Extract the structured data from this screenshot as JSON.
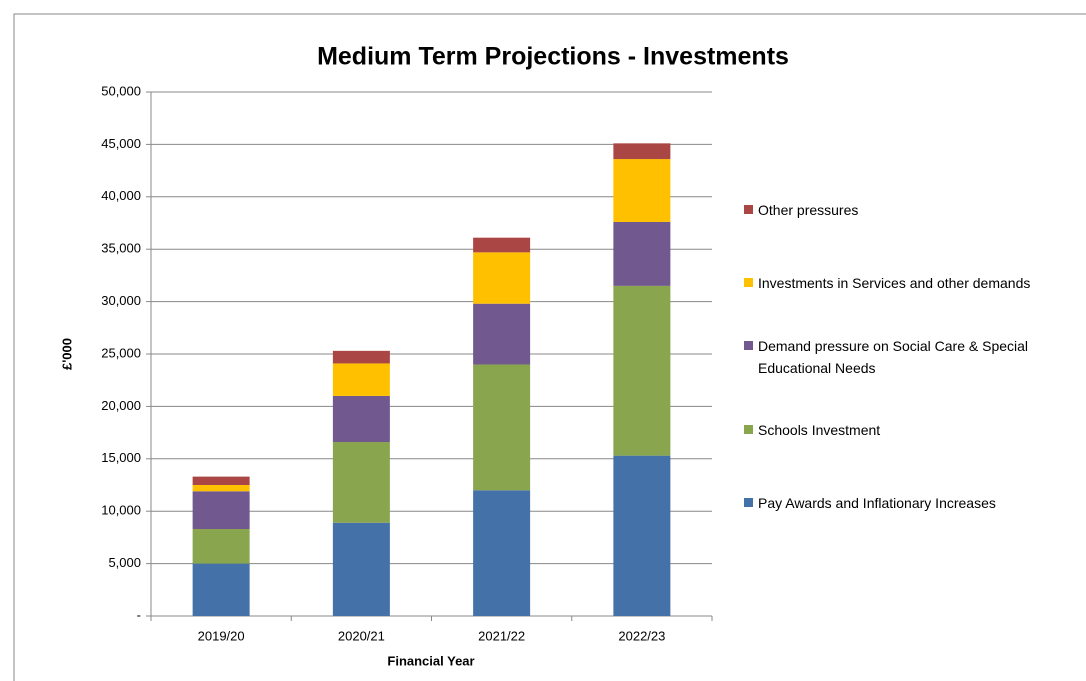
{
  "chart_data": {
    "type": "stacked-bar",
    "title": "Medium Term Projections - Investments",
    "x_label": "Financial Year",
    "y_label": "£'000",
    "categories": [
      "2019/20",
      "2020/21",
      "2021/22",
      "2022/23"
    ],
    "series": [
      {
        "name": "Pay Awards and Inflationary Increases",
        "color": "#4472a8",
        "values": [
          5000,
          8900,
          12000,
          15300
        ]
      },
      {
        "name": "Schools Investment",
        "color": "#89a54e",
        "values": [
          3300,
          7700,
          12000,
          16200
        ]
      },
      {
        "name": "Demand pressure on Social Care & Special Educational Needs",
        "color": "#71588f",
        "values": [
          3600,
          4400,
          5800,
          6100
        ]
      },
      {
        "name": "Investments in Services and other demands",
        "color": "#ffc000",
        "values": [
          600,
          3100,
          4900,
          6000
        ]
      },
      {
        "name": "Other pressures",
        "color": "#aa4643",
        "values": [
          800,
          1200,
          1400,
          1500
        ]
      }
    ],
    "ylim": [
      0,
      50000
    ],
    "yticks": [
      {
        "value": 0,
        "label": "-"
      },
      {
        "value": 5000,
        "label": "5,000"
      },
      {
        "value": 10000,
        "label": "10,000"
      },
      {
        "value": 15000,
        "label": "15,000"
      },
      {
        "value": 20000,
        "label": "20,000"
      },
      {
        "value": 25000,
        "label": "25,000"
      },
      {
        "value": 30000,
        "label": "30,000"
      },
      {
        "value": 35000,
        "label": "35,000"
      },
      {
        "value": 40000,
        "label": "40,000"
      },
      {
        "value": 45000,
        "label": "45,000"
      },
      {
        "value": 50000,
        "label": "50,000"
      }
    ],
    "grid": true,
    "legend": "right"
  }
}
